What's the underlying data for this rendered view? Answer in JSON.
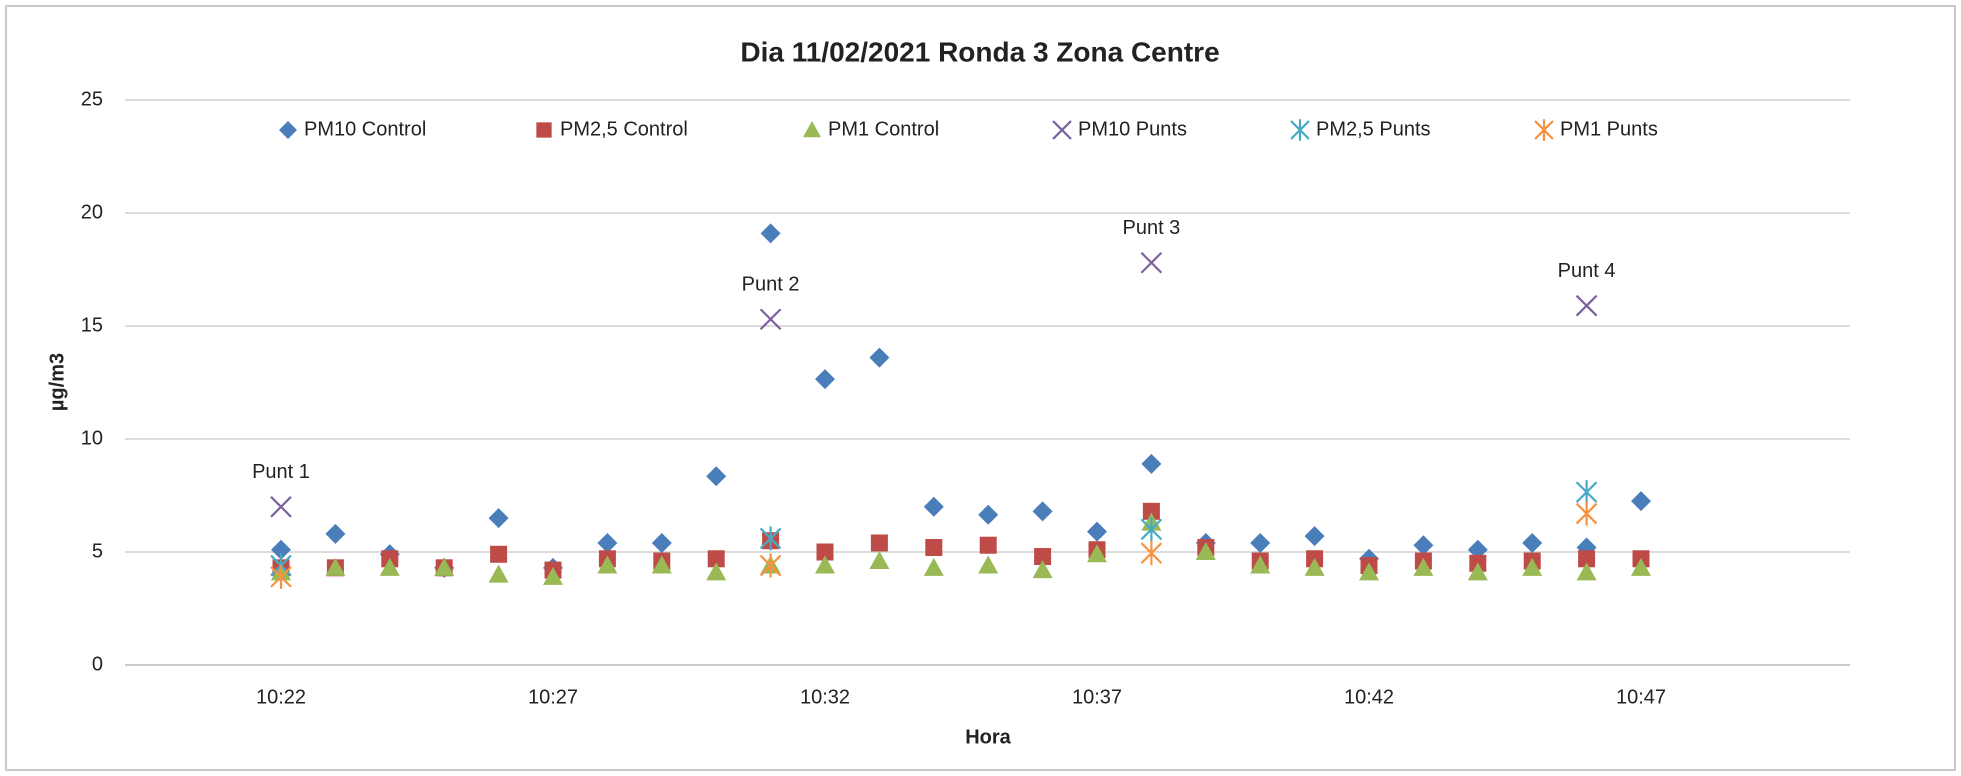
{
  "chart_data": {
    "type": "scatter",
    "title": "Dia 11/02/2021 Ronda 3 Zona Centre",
    "y_label": "µg/m3",
    "x_label": "Hora",
    "categories": [
      "10:22",
      null,
      null,
      null,
      null,
      "10:27",
      null,
      null,
      null,
      null,
      "10:32",
      null,
      null,
      null,
      null,
      "10:37",
      null,
      null,
      null,
      null,
      "10:42",
      null,
      null,
      null,
      null,
      "10:47"
    ],
    "ylim": [
      0,
      25
    ],
    "yticks": [
      0,
      5,
      10,
      15,
      20,
      25
    ],
    "grid": true,
    "legend": "top",
    "series": [
      {
        "name": "PM10 Control",
        "color": "#4a7ebb",
        "marker": "diamond",
        "values": [
          5.1,
          5.8,
          4.9,
          4.3,
          6.5,
          4.3,
          5.4,
          5.4,
          8.35,
          19.1,
          12.65,
          13.6,
          7.0,
          6.65,
          6.8,
          5.9,
          8.9,
          5.4,
          5.4,
          5.7,
          4.7,
          5.3,
          5.1,
          5.4,
          5.2,
          7.25
        ]
      },
      {
        "name": "PM2,5 Control",
        "color": "#be4b48",
        "marker": "square",
        "values": [
          4.3,
          4.3,
          4.7,
          4.3,
          4.9,
          4.2,
          4.7,
          4.6,
          4.7,
          5.5,
          5.0,
          5.4,
          5.2,
          5.3,
          4.8,
          5.1,
          6.8,
          5.2,
          4.6,
          4.7,
          4.4,
          4.6,
          4.5,
          4.6,
          4.7,
          4.7
        ]
      },
      {
        "name": "PM1 Control",
        "color": "#98b954",
        "marker": "triangle",
        "values": [
          4.1,
          4.3,
          4.3,
          4.3,
          4.0,
          3.9,
          4.4,
          4.4,
          4.1,
          4.4,
          4.4,
          4.6,
          4.3,
          4.4,
          4.2,
          4.9,
          6.3,
          5.0,
          4.4,
          4.3,
          4.1,
          4.3,
          4.1,
          4.3,
          4.1,
          4.3
        ]
      },
      {
        "name": "PM10 Punts",
        "color": "#7d60a0",
        "marker": "x",
        "values": [
          7.0,
          null,
          null,
          null,
          null,
          null,
          null,
          null,
          null,
          15.3,
          null,
          null,
          null,
          null,
          null,
          null,
          17.8,
          null,
          null,
          null,
          null,
          null,
          null,
          null,
          15.9,
          null
        ]
      },
      {
        "name": "PM2,5 Punts",
        "color": "#46aac5",
        "marker": "star",
        "values": [
          4.4,
          null,
          null,
          null,
          null,
          null,
          null,
          null,
          null,
          5.6,
          null,
          null,
          null,
          null,
          null,
          null,
          6.0,
          null,
          null,
          null,
          null,
          null,
          null,
          null,
          7.65,
          null
        ]
      },
      {
        "name": "PM1 Punts",
        "color": "#f69240",
        "marker": "star",
        "values": [
          3.9,
          null,
          null,
          null,
          null,
          null,
          null,
          null,
          null,
          4.4,
          null,
          null,
          null,
          null,
          null,
          null,
          4.95,
          null,
          null,
          null,
          null,
          null,
          null,
          null,
          6.7,
          null
        ]
      }
    ],
    "annotations": [
      "Punt 1",
      "Punt 2",
      "Punt 3",
      "Punt 4"
    ]
  }
}
